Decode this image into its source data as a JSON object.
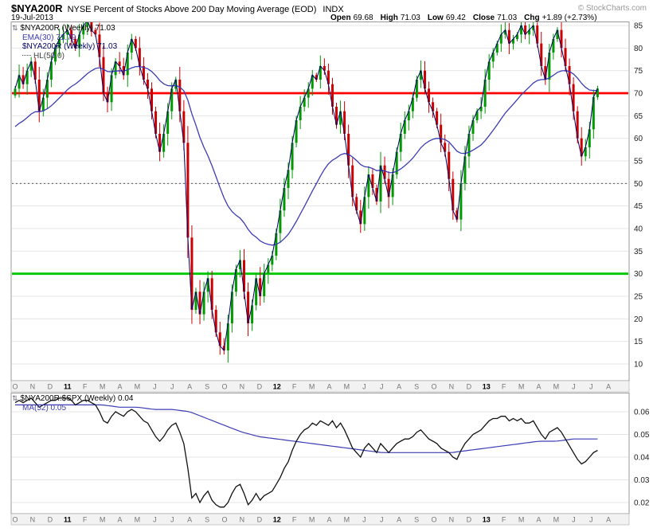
{
  "header": {
    "symbol": "$NYA200R",
    "title": "NYSE Percent of Stocks Above 200 Day Moving Average (EOD)",
    "exchange": "INDX",
    "copyright": "© StockCharts.com",
    "date": "19-Jul-2013",
    "quote": {
      "open_label": "Open",
      "open": "69.68",
      "high_label": "High",
      "high": "71.03",
      "low_label": "Low",
      "low": "69.42",
      "close_label": "Close",
      "close": "71.03",
      "chg_label": "Chg",
      "chg": "+1.89 (+2.73%)"
    }
  },
  "main_legend": {
    "row1": "$NYA200R (Weekly) 71.03",
    "row2": "EMA(30) 71.79",
    "row3": "$NYA200R (Weekly) 71.03",
    "row4": "HL(50.0)"
  },
  "lower_legend": {
    "row1": "$NYA200R:$SPX (Weekly) 0.04",
    "row2": "MA(52) 0.05"
  },
  "chart_data": [
    {
      "type": "candlestick",
      "name": "$NYA200R (Weekly)",
      "last_close": 71.03,
      "ylim": [
        10,
        85
      ],
      "y_ticks": [
        85,
        80,
        75,
        70,
        65,
        60,
        55,
        50,
        45,
        40,
        35,
        30,
        25,
        20,
        15,
        10
      ],
      "x_labels": [
        "O",
        "N",
        "D",
        "11",
        "F",
        "M",
        "A",
        "M",
        "J",
        "J",
        "A",
        "S",
        "O",
        "N",
        "D",
        "12",
        "F",
        "M",
        "A",
        "M",
        "J",
        "J",
        "A",
        "S",
        "O",
        "N",
        "D",
        "13",
        "F",
        "M",
        "A",
        "M",
        "J",
        "J",
        "A"
      ],
      "closes": [
        71,
        74,
        72,
        75,
        77,
        73,
        66,
        69,
        73,
        77,
        80,
        82,
        83,
        84,
        82,
        80,
        83,
        85,
        86,
        84,
        83,
        78,
        70,
        68,
        74,
        77,
        76,
        74,
        79,
        82,
        80,
        76,
        73,
        71,
        66,
        61,
        57,
        61,
        66,
        71,
        73,
        66,
        59,
        38,
        22,
        26,
        21,
        26,
        29,
        22,
        17,
        14,
        13,
        19,
        26,
        31,
        33,
        26,
        19,
        23,
        29,
        25,
        30,
        32,
        34,
        39,
        44,
        49,
        53,
        59,
        64,
        67,
        69,
        71,
        74,
        73,
        76,
        75,
        72,
        67,
        63,
        66,
        61,
        54,
        47,
        44,
        41,
        47,
        52,
        49,
        46,
        54,
        51,
        47,
        52,
        57,
        61,
        64,
        66,
        69,
        73,
        75,
        71,
        68,
        66,
        63,
        59,
        57,
        51,
        44,
        42,
        50,
        56,
        61,
        64,
        66,
        67,
        73,
        77,
        79,
        81,
        83,
        84,
        81,
        82,
        83,
        85,
        83,
        84,
        85,
        81,
        76,
        73,
        79,
        82,
        84,
        80,
        76,
        72,
        66,
        60,
        56,
        58,
        62,
        69.14,
        71.03
      ],
      "overlays": [
        {
          "name": "EMA(30)",
          "period": 30,
          "last": 71.79
        },
        {
          "name": "HL(50.0)",
          "value": 50
        }
      ],
      "hlines": [
        {
          "value": 70,
          "color": "#ff0000",
          "width": 2.8
        },
        {
          "value": 50,
          "color": "#555555",
          "width": 1,
          "dash": "2,3"
        },
        {
          "value": 30,
          "color": "#00c800",
          "width": 2.8
        }
      ],
      "colors": {
        "up": "#009900",
        "down": "#cc0000",
        "close_line": "#000066",
        "ema": "#3c3cb4"
      }
    },
    {
      "type": "line",
      "name": "$NYA200R:$SPX (Weekly)",
      "last": 0.04,
      "y_ticks": [
        "0.06",
        "0.05",
        "0.04",
        "0.03",
        "0.02"
      ],
      "values": [
        0.064,
        0.065,
        0.064,
        0.065,
        0.066,
        0.064,
        0.062,
        0.063,
        0.064,
        0.065,
        0.065,
        0.066,
        0.066,
        0.066,
        0.065,
        0.063,
        0.064,
        0.065,
        0.065,
        0.064,
        0.063,
        0.06,
        0.056,
        0.055,
        0.058,
        0.06,
        0.059,
        0.058,
        0.06,
        0.061,
        0.06,
        0.058,
        0.056,
        0.055,
        0.052,
        0.049,
        0.047,
        0.049,
        0.052,
        0.054,
        0.055,
        0.051,
        0.046,
        0.035,
        0.022,
        0.024,
        0.02,
        0.023,
        0.025,
        0.021,
        0.019,
        0.018,
        0.018,
        0.02,
        0.024,
        0.027,
        0.028,
        0.024,
        0.019,
        0.021,
        0.024,
        0.021,
        0.023,
        0.024,
        0.025,
        0.028,
        0.031,
        0.035,
        0.038,
        0.043,
        0.047,
        0.05,
        0.052,
        0.053,
        0.055,
        0.054,
        0.056,
        0.055,
        0.054,
        0.056,
        0.053,
        0.055,
        0.052,
        0.048,
        0.044,
        0.042,
        0.04,
        0.044,
        0.046,
        0.044,
        0.042,
        0.046,
        0.044,
        0.042,
        0.044,
        0.046,
        0.047,
        0.048,
        0.048,
        0.049,
        0.051,
        0.052,
        0.05,
        0.048,
        0.047,
        0.046,
        0.044,
        0.043,
        0.042,
        0.04,
        0.039,
        0.043,
        0.046,
        0.048,
        0.05,
        0.051,
        0.052,
        0.054,
        0.056,
        0.057,
        0.057,
        0.058,
        0.058,
        0.056,
        0.057,
        0.056,
        0.057,
        0.055,
        0.055,
        0.056,
        0.053,
        0.05,
        0.048,
        0.051,
        0.052,
        0.053,
        0.051,
        0.048,
        0.045,
        0.042,
        0.039,
        0.037,
        0.038,
        0.04,
        0.042,
        0.043
      ],
      "ma52_monthly": [
        0.063,
        0.063,
        0.063,
        0.063,
        0.063,
        0.063,
        0.062,
        0.062,
        0.061,
        0.061,
        0.06,
        0.057,
        0.054,
        0.051,
        0.049,
        0.048,
        0.047,
        0.046,
        0.045,
        0.044,
        0.043,
        0.042,
        0.042,
        0.042,
        0.042,
        0.042,
        0.043,
        0.044,
        0.045,
        0.046,
        0.047,
        0.047,
        0.048,
        0.048,
        0.048
      ],
      "ma_last": 0.05,
      "colors": {
        "line": "#111111",
        "ma": "#3c3cb4"
      }
    }
  ]
}
